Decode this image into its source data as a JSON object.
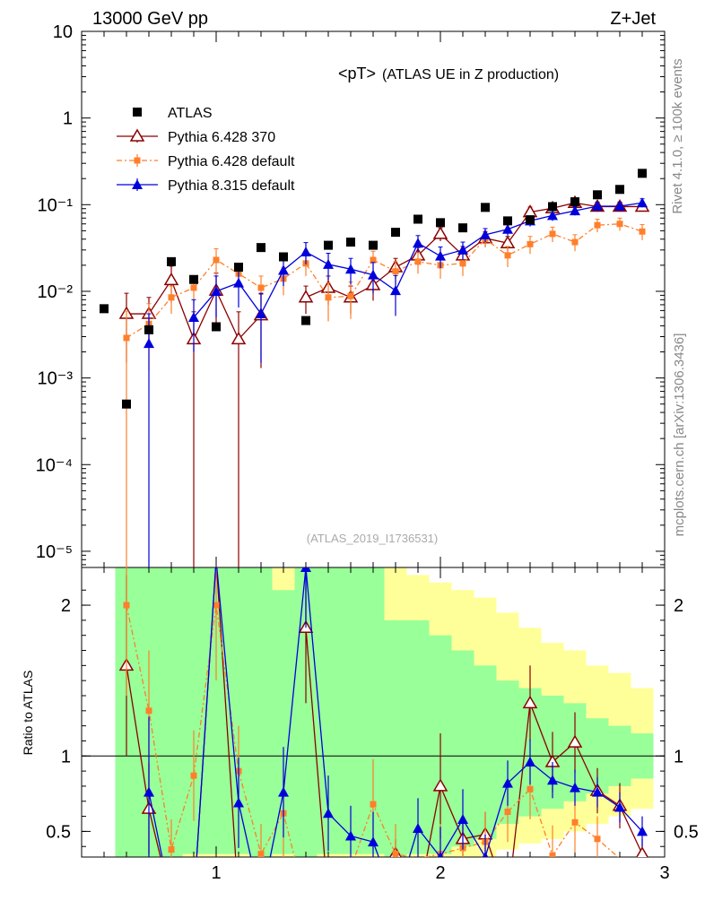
{
  "header": {
    "left": "13000 GeV pp",
    "right": "Z+Jet"
  },
  "side_labels": {
    "rivet": "Rivet 4.1.0, ≥ 100k events",
    "mcplots": "mcplots.cern.ch [arXiv:1306.3436]"
  },
  "main_plot": {
    "title": "<pT>",
    "subtitle": "(ATLAS UE in Z production)",
    "watermark": "(ATLAS_2019_I1736531)",
    "y_ticks": [
      {
        "value": 10,
        "label": "10"
      },
      {
        "value": 1,
        "label": "1"
      },
      {
        "value": 0.1,
        "label": "10⁻¹"
      },
      {
        "value": 0.01,
        "label": "10⁻²"
      },
      {
        "value": 0.001,
        "label": "10⁻³"
      },
      {
        "value": 0.0001,
        "label": "10⁻⁴"
      },
      {
        "value": 1e-05,
        "label": "10⁻⁵"
      }
    ]
  },
  "ratio_plot": {
    "ylabel": "Ratio to ATLAS",
    "y_ticks": [
      {
        "value": 2,
        "label": "2"
      },
      {
        "value": 1,
        "label": "1"
      },
      {
        "value": 0.5,
        "label": "0.5"
      }
    ],
    "x_ticks": [
      {
        "value": 1,
        "label": "1"
      },
      {
        "value": 2,
        "label": "2"
      },
      {
        "value": 3,
        "label": "3"
      }
    ]
  },
  "legend": [
    {
      "label": "ATLAS",
      "color": "#000000",
      "marker": "square"
    },
    {
      "label": "Pythia 6.428 370",
      "color": "#8b0000",
      "marker": "open-triangle"
    },
    {
      "label": "Pythia 6.428 default",
      "color": "#ff7f2a",
      "marker": "small-square"
    },
    {
      "label": "Pythia 8.315 default",
      "color": "#0000dd",
      "marker": "triangle"
    }
  ],
  "chart_data": {
    "type": "line",
    "title": "<pT> (ATLAS UE in Z production)",
    "xlabel": "",
    "ylabel": "",
    "xlim": [
      0.4,
      3.0
    ],
    "ylim": [
      6.5e-06,
      10
    ],
    "ratio_ylim": [
      0.33,
      2.25
    ],
    "bin_width": 0.1,
    "x": [
      0.5,
      0.6,
      0.7,
      0.8,
      0.9,
      1.0,
      1.1,
      1.2,
      1.3,
      1.4,
      1.5,
      1.6,
      1.7,
      1.8,
      1.9,
      2.0,
      2.1,
      2.2,
      2.3,
      2.4,
      2.5,
      2.6,
      2.7,
      2.8,
      2.9
    ],
    "data": {
      "name": "ATLAS",
      "values": [
        0.0063,
        0.0005,
        0.0036,
        0.022,
        0.0137,
        0.0039,
        0.019,
        0.032,
        0.025,
        0.0046,
        0.034,
        0.037,
        0.034,
        0.048,
        0.068,
        0.062,
        0.054,
        0.093,
        0.065,
        0.067,
        0.095,
        0.108,
        0.13,
        0.15,
        0.23
      ],
      "band_inner": [
        [
          0.45,
          0.45
        ],
        [
          0.3,
          2.25
        ],
        [
          0.3,
          2.25
        ],
        [
          0.3,
          2.25
        ],
        [
          0.35,
          2.25
        ],
        [
          0.35,
          2.25
        ],
        [
          0.35,
          2.25
        ],
        [
          0.3,
          2.25
        ],
        [
          0.35,
          2.1
        ],
        [
          0.3,
          2.25
        ],
        [
          0.35,
          2.25
        ],
        [
          0.35,
          2.25
        ],
        [
          0.35,
          2.25
        ],
        [
          0.3,
          1.9
        ],
        [
          0.35,
          1.9
        ],
        [
          0.35,
          1.8
        ],
        [
          0.4,
          1.7
        ],
        [
          0.45,
          1.6
        ],
        [
          0.55,
          1.5
        ],
        [
          0.6,
          1.45
        ],
        [
          0.65,
          1.4
        ],
        [
          0.7,
          1.35
        ],
        [
          0.75,
          1.25
        ],
        [
          0.8,
          1.2
        ],
        [
          0.85,
          1.15
        ]
      ],
      "band_outer": [
        [
          0.45,
          0.45
        ],
        [
          0.3,
          2.25
        ],
        [
          0.3,
          2.25
        ],
        [
          0.3,
          2.25
        ],
        [
          0.3,
          2.25
        ],
        [
          0.3,
          2.25
        ],
        [
          0.3,
          2.25
        ],
        [
          0.3,
          2.25
        ],
        [
          0.3,
          2.25
        ],
        [
          0.3,
          2.25
        ],
        [
          0.3,
          2.25
        ],
        [
          0.3,
          2.25
        ],
        [
          0.3,
          2.25
        ],
        [
          0.3,
          2.25
        ],
        [
          0.3,
          2.2
        ],
        [
          0.3,
          2.15
        ],
        [
          0.33,
          2.1
        ],
        [
          0.33,
          2.05
        ],
        [
          0.38,
          1.95
        ],
        [
          0.42,
          1.85
        ],
        [
          0.45,
          1.75
        ],
        [
          0.5,
          1.7
        ],
        [
          0.55,
          1.6
        ],
        [
          0.6,
          1.55
        ],
        [
          0.65,
          1.45
        ]
      ]
    },
    "series": [
      {
        "name": "Pythia 6.428 370",
        "values": [
          null,
          0.0055,
          0.0055,
          0.0135,
          0.0028,
          0.0102,
          0.0028,
          0.0053,
          null,
          0.0085,
          0.011,
          0.0085,
          0.0118,
          0.019,
          0.026,
          0.046,
          0.026,
          0.041,
          0.036,
          0.082,
          0.091,
          0.105,
          0.095,
          0.095,
          0.095
        ],
        "errors": [
          null,
          0.004,
          0.003,
          0.006,
          0.003,
          0.006,
          0.003,
          0.004,
          null,
          0.003,
          0.004,
          0.003,
          0.004,
          0.005,
          0.006,
          0.008,
          0.007,
          0.008,
          0.007,
          0.012,
          0.012,
          0.012,
          0.012,
          0.012,
          0.012
        ],
        "ratio": [
          null,
          1.6,
          0.65,
          0.0,
          0.0,
          2.3,
          0.0,
          0.0,
          null,
          1.85,
          0.0,
          0.0,
          0.0,
          0.35,
          0.0,
          0.8,
          0.45,
          0.48,
          0.0,
          1.35,
          0.96,
          1.09,
          0.77,
          0.67,
          0.35
        ],
        "ratio_err": [
          null,
          0.6,
          0.3,
          0.1,
          0.1,
          0.3,
          0.1,
          0.1,
          null,
          0.5,
          0.1,
          0.1,
          0.1,
          0.1,
          0.1,
          0.35,
          0.15,
          0.15,
          0.1,
          0.25,
          0.2,
          0.2,
          0.15,
          0.15,
          0.1
        ]
      },
      {
        "name": "Pythia 6.428 default",
        "values": [
          null,
          0.0029,
          0.0042,
          0.0085,
          0.011,
          0.023,
          0.016,
          0.011,
          0.014,
          0.021,
          0.0085,
          0.0088,
          0.023,
          0.017,
          0.022,
          0.02,
          0.021,
          0.04,
          0.026,
          0.035,
          0.046,
          0.037,
          0.058,
          0.06,
          0.049
        ],
        "errors": [
          null,
          0.003,
          0.003,
          0.003,
          0.004,
          0.008,
          0.005,
          0.004,
          0.005,
          0.006,
          0.004,
          0.004,
          0.006,
          0.005,
          0.006,
          0.006,
          0.006,
          0.008,
          0.007,
          0.008,
          0.009,
          0.008,
          0.01,
          0.01,
          0.01
        ],
        "ratio": [
          null,
          2.0,
          1.3,
          0.38,
          0.87,
          2.0,
          0.9,
          0.35,
          0.62,
          0.0,
          0.25,
          0.25,
          0.68,
          0.35,
          0.32,
          0.35,
          0.39,
          0.43,
          0.63,
          0.78,
          0.34,
          0.56,
          0.45,
          0.32,
          0.3
        ],
        "ratio_err": [
          null,
          0.6,
          0.4,
          0.2,
          0.3,
          0.5,
          0.3,
          0.2,
          0.3,
          0.2,
          0.2,
          0.2,
          0.3,
          0.2,
          0.2,
          0.2,
          0.2,
          0.2,
          0.2,
          0.2,
          0.2,
          0.2,
          0.15,
          0.15,
          0.15
        ]
      },
      {
        "name": "Pythia 8.315 default",
        "values": [
          null,
          null,
          0.0025,
          null,
          0.005,
          0.01,
          0.0125,
          0.0055,
          0.0175,
          0.0285,
          0.0205,
          0.018,
          0.0155,
          0.0102,
          0.036,
          0.0255,
          0.03,
          0.045,
          0.052,
          0.065,
          0.075,
          0.085,
          0.096,
          0.096,
          0.105
        ],
        "errors": [
          null,
          null,
          0.003,
          null,
          0.003,
          0.005,
          0.006,
          0.004,
          0.006,
          0.008,
          0.007,
          0.006,
          0.006,
          0.005,
          0.008,
          0.007,
          0.007,
          0.008,
          0.008,
          0.009,
          0.01,
          0.01,
          0.011,
          0.011,
          0.012
        ],
        "ratio": [
          null,
          null,
          0.76,
          0.0,
          0.0,
          2.3,
          0.69,
          0.0,
          0.76,
          2.25,
          0.62,
          0.47,
          0.43,
          0.0,
          0.52,
          0.33,
          0.58,
          0.33,
          0.82,
          0.96,
          0.84,
          0.79,
          0.76,
          0.66,
          0.5
        ],
        "ratio_err": [
          null,
          null,
          0.5,
          0.1,
          0.1,
          0.5,
          0.3,
          0.1,
          0.3,
          0.4,
          0.25,
          0.2,
          0.2,
          0.1,
          0.2,
          0.2,
          0.2,
          0.15,
          0.15,
          0.15,
          0.12,
          0.12,
          0.1,
          0.1,
          0.1
        ]
      }
    ]
  }
}
